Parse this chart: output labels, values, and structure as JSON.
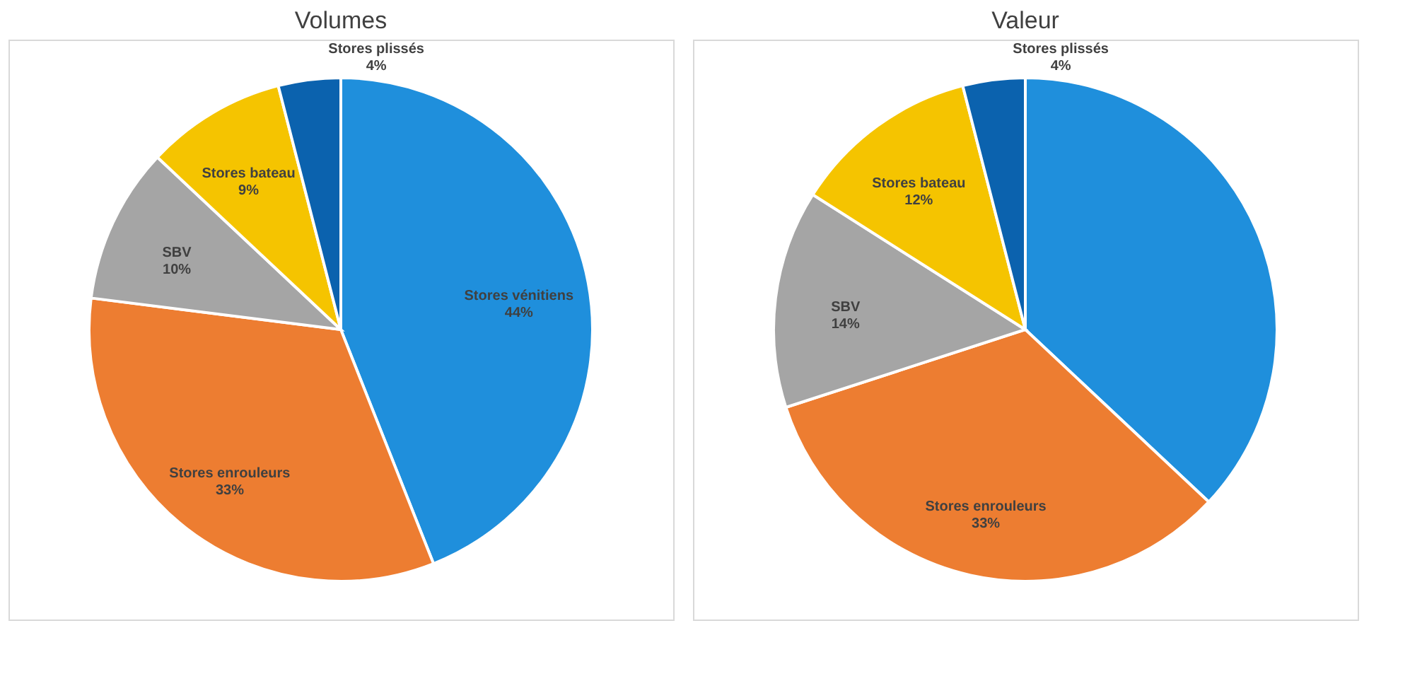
{
  "chart_data": [
    {
      "type": "pie",
      "title": "Volumes",
      "categories": [
        "Stores vénitiens",
        "Stores enrouleurs",
        "SBV",
        "Stores bateau",
        "Stores plissés"
      ],
      "values": [
        44,
        33,
        10,
        9,
        4
      ],
      "value_labels": [
        "44%",
        "33%",
        "10%",
        "9%",
        "4%"
      ],
      "colors": [
        "#1f8fdc",
        "#ed7d31",
        "#a5a5a5",
        "#f5c400",
        "#0b62ae"
      ]
    },
    {
      "type": "pie",
      "title": "Valeur",
      "categories": [
        null,
        "Stores enrouleurs",
        "SBV",
        "Stores bateau",
        "Stores plissés"
      ],
      "values": [
        37,
        33,
        14,
        12,
        4
      ],
      "value_labels": [
        null,
        "33%",
        "14%",
        "12%",
        "4%"
      ],
      "colors": [
        "#1f8fdc",
        "#ed7d31",
        "#a5a5a5",
        "#f5c400",
        "#0b62ae"
      ]
    }
  ]
}
